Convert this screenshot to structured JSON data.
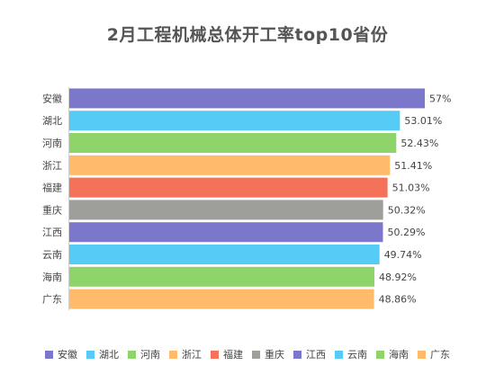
{
  "chart_data": {
    "type": "bar",
    "orientation": "horizontal",
    "title": "2月工程机械总体开工率top10省份",
    "categories": [
      "安徽",
      "湖北",
      "河南",
      "浙江",
      "福建",
      "重庆",
      "江西",
      "云南",
      "海南",
      "广东"
    ],
    "values": [
      57,
      53.01,
      52.43,
      51.41,
      51.03,
      50.32,
      50.29,
      49.74,
      48.92,
      48.86
    ],
    "data_labels": [
      "57%",
      "53.01%",
      "52.43%",
      "51.41%",
      "51.03%",
      "50.32%",
      "50.29%",
      "49.74%",
      "48.92%",
      "48.86%"
    ],
    "colors": [
      "#7b78cc",
      "#55cbf5",
      "#8fd46a",
      "#ffbb6b",
      "#f4725a",
      "#9e9e9b",
      "#7b78cc",
      "#55cbf5",
      "#8fd46a",
      "#ffbb6b"
    ],
    "xlim": [
      0,
      57
    ],
    "grid": false,
    "legend_position": "bottom"
  }
}
